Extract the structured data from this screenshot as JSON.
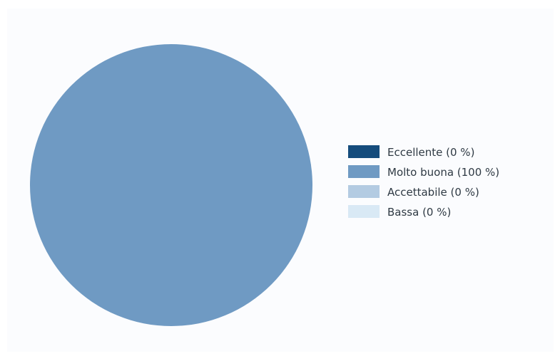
{
  "chart_data": {
    "type": "pie",
    "categories": [
      "Eccellente",
      "Molto buona",
      "Accettabile",
      "Bassa"
    ],
    "values": [
      0,
      100,
      0,
      0
    ],
    "colors": [
      "#154c7c",
      "#6f9ac3",
      "#b3cbe2",
      "#d9e9f5"
    ],
    "legend": {
      "placement": "right",
      "entries": [
        "Eccellente (0 %)",
        "Molto buona (100 %)",
        "Accettabile (0 %)",
        "Bassa (0 %)"
      ]
    }
  }
}
